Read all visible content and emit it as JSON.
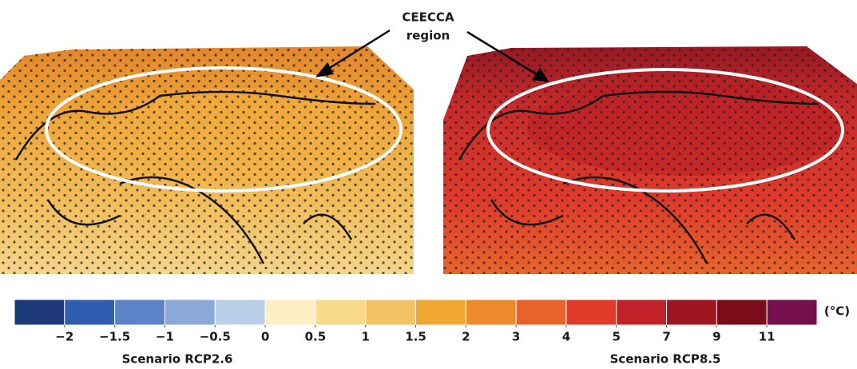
{
  "annotation": {
    "lines": [
      "CEECCA",
      "region"
    ]
  },
  "maps": [
    {
      "label": "Scenario RCP2.6"
    },
    {
      "label": "Scenario RCP8.5"
    }
  ],
  "colorbar": {
    "unit": "(°C)",
    "colors": [
      "#1d3a78",
      "#2f5db0",
      "#5c83c7",
      "#8aa9d8",
      "#bccfea",
      "#fcefc4",
      "#f7d98c",
      "#f3c263",
      "#f0a832",
      "#ec8a2c",
      "#e8622a",
      "#e03a2a",
      "#c32129",
      "#9f1520",
      "#7a0d19",
      "#76104c"
    ],
    "ticks": [
      {
        "value": -2,
        "label": "−2"
      },
      {
        "value": -1.5,
        "label": "−1.5"
      },
      {
        "value": -1,
        "label": "−1"
      },
      {
        "value": -0.5,
        "label": "−0.5"
      },
      0,
      0.5,
      1,
      1.5,
      2,
      3,
      4,
      5,
      7,
      9,
      11
    ]
  }
}
